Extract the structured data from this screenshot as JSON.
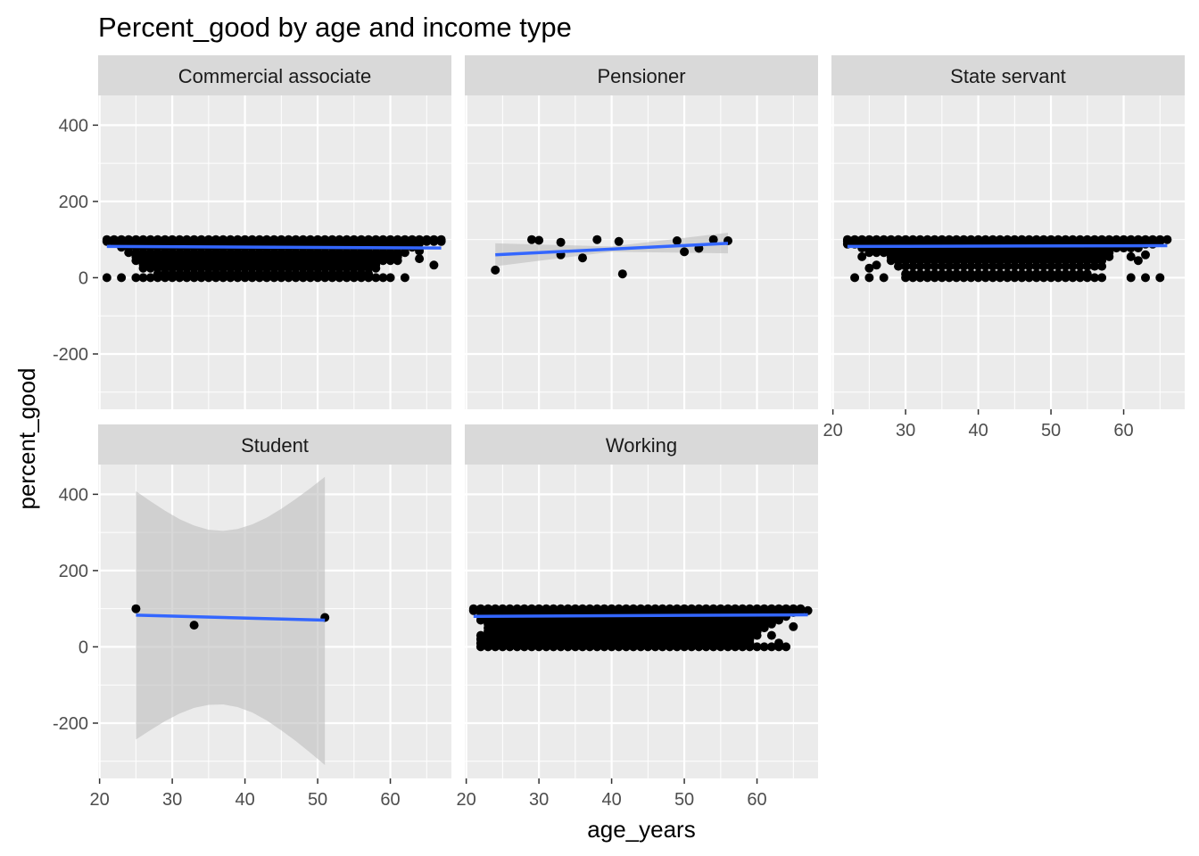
{
  "chart_data": {
    "type": "scatter",
    "title": "Percent_good by age and income type",
    "xlabel": "age_years",
    "ylabel": "percent_good",
    "xlim": [
      19.8,
      68.4
    ],
    "ylim": [
      -345,
      478
    ],
    "x_ticks": [
      20,
      30,
      40,
      50,
      60
    ],
    "y_ticks": [
      -200,
      0,
      200,
      400
    ],
    "facet_layout": {
      "rows": 2,
      "cols": 3
    },
    "colors": {
      "panel_bg": "#ebebeb",
      "strip_bg": "#d9d9d9",
      "grid_major": "#ffffff",
      "point": "#000000",
      "smooth_line": "#3366ff",
      "ribbon": "#bebebe"
    },
    "panels": [
      {
        "label": "Commercial associate",
        "row": 0,
        "col": 0,
        "point_rows": [
          {
            "y": 100,
            "x_from": 21,
            "x_to": 67
          },
          {
            "y": 95,
            "x_from": 21,
            "x_to": 67
          },
          {
            "y": 90,
            "x_from": 22,
            "x_to": 64
          },
          {
            "y": 80,
            "x_from": 23,
            "x_to": 63
          },
          {
            "y": 66,
            "x_from": 24,
            "x_to": 62
          },
          {
            "y": 55,
            "x_from": 25,
            "x_to": 61
          },
          {
            "y": 45,
            "x_from": 25,
            "x_to": 61
          },
          {
            "y": 35,
            "x_from": 26,
            "x_to": 58
          },
          {
            "y": 25,
            "x_from": 26,
            "x_to": 58
          },
          {
            "y": 10,
            "x_from": 28,
            "x_to": 57
          },
          {
            "y": 0,
            "x_from": 25,
            "x_to": 60
          }
        ],
        "points": [
          {
            "x": 21,
            "y": 0
          },
          {
            "x": 23,
            "y": 0
          },
          {
            "x": 62,
            "y": 0
          },
          {
            "x": 64,
            "y": 70
          },
          {
            "x": 66,
            "y": 33
          },
          {
            "x": 64,
            "y": 50
          }
        ],
        "smooth": {
          "x": [
            21,
            67
          ],
          "y": [
            82,
            78
          ]
        }
      },
      {
        "label": "Pensioner",
        "row": 0,
        "col": 1,
        "points": [
          {
            "x": 24,
            "y": 20
          },
          {
            "x": 29,
            "y": 100
          },
          {
            "x": 30,
            "y": 98
          },
          {
            "x": 33,
            "y": 93
          },
          {
            "x": 33,
            "y": 60
          },
          {
            "x": 36,
            "y": 52
          },
          {
            "x": 38,
            "y": 100
          },
          {
            "x": 41,
            "y": 95
          },
          {
            "x": 41.5,
            "y": 10
          },
          {
            "x": 49,
            "y": 97
          },
          {
            "x": 50,
            "y": 68
          },
          {
            "x": 52,
            "y": 77
          },
          {
            "x": 54,
            "y": 100
          },
          {
            "x": 56,
            "y": 97
          }
        ],
        "smooth": {
          "x": [
            24,
            56
          ],
          "y": [
            60,
            90
          ]
        },
        "ribbon": {
          "x": [
            24,
            40,
            56
          ],
          "lower": [
            30,
            68,
            64
          ],
          "upper": [
            90,
            82,
            118
          ]
        }
      },
      {
        "label": "State servant",
        "row": 0,
        "col": 2,
        "point_rows": [
          {
            "y": 100,
            "x_from": 22,
            "x_to": 66
          },
          {
            "y": 95,
            "x_from": 22,
            "x_to": 65
          },
          {
            "y": 88,
            "x_from": 22,
            "x_to": 64
          },
          {
            "y": 78,
            "x_from": 24,
            "x_to": 62
          },
          {
            "y": 66,
            "x_from": 25,
            "x_to": 58
          },
          {
            "y": 55,
            "x_from": 28,
            "x_to": 58
          },
          {
            "y": 45,
            "x_from": 28,
            "x_to": 57
          },
          {
            "y": 30,
            "x_from": 29,
            "x_to": 57
          },
          {
            "y": 10,
            "x_from": 30,
            "x_to": 55
          },
          {
            "y": 0,
            "x_from": 30,
            "x_to": 57
          }
        ],
        "points": [
          {
            "x": 23,
            "y": 0
          },
          {
            "x": 25,
            "y": 0
          },
          {
            "x": 27,
            "y": 0
          },
          {
            "x": 24,
            "y": 55
          },
          {
            "x": 25,
            "y": 25
          },
          {
            "x": 26,
            "y": 33
          },
          {
            "x": 61,
            "y": 0
          },
          {
            "x": 63,
            "y": 0
          },
          {
            "x": 65,
            "y": 0
          },
          {
            "x": 61,
            "y": 55
          },
          {
            "x": 62,
            "y": 45
          },
          {
            "x": 63,
            "y": 60
          }
        ],
        "smooth": {
          "x": [
            22,
            66
          ],
          "y": [
            82,
            84
          ]
        }
      },
      {
        "label": "Student",
        "row": 1,
        "col": 0,
        "points": [
          {
            "x": 25,
            "y": 100
          },
          {
            "x": 33,
            "y": 57
          },
          {
            "x": 51,
            "y": 77
          }
        ],
        "smooth": {
          "x": [
            25,
            51
          ],
          "y": [
            83,
            70
          ]
        },
        "ribbon": {
          "x": [
            25,
            27,
            29,
            31,
            33,
            35,
            37,
            39,
            41,
            43,
            45,
            47,
            49,
            51
          ],
          "lower": [
            -243,
            -218,
            -195,
            -175,
            -160,
            -152,
            -151,
            -158,
            -172,
            -193,
            -219,
            -247,
            -278,
            -310
          ],
          "upper": [
            408,
            382,
            357,
            335,
            318,
            307,
            304,
            309,
            321,
            339,
            362,
            388,
            416,
            446
          ]
        }
      },
      {
        "label": "Working",
        "row": 1,
        "col": 1,
        "point_rows": [
          {
            "y": 100,
            "x_from": 21,
            "x_to": 66
          },
          {
            "y": 95,
            "x_from": 21,
            "x_to": 67
          },
          {
            "y": 90,
            "x_from": 22,
            "x_to": 65
          },
          {
            "y": 80,
            "x_from": 22,
            "x_to": 64
          },
          {
            "y": 70,
            "x_from": 22,
            "x_to": 63
          },
          {
            "y": 60,
            "x_from": 23,
            "x_to": 62
          },
          {
            "y": 50,
            "x_from": 23,
            "x_to": 61
          },
          {
            "y": 40,
            "x_from": 23,
            "x_to": 60
          },
          {
            "y": 30,
            "x_from": 22,
            "x_to": 60
          },
          {
            "y": 20,
            "x_from": 22,
            "x_to": 59
          },
          {
            "y": 10,
            "x_from": 22,
            "x_to": 59
          },
          {
            "y": 0,
            "x_from": 22,
            "x_to": 64
          }
        ],
        "points": [
          {
            "x": 65,
            "y": 53
          },
          {
            "x": 62,
            "y": 30
          },
          {
            "x": 63,
            "y": 10
          }
        ],
        "smooth": {
          "x": [
            21,
            67
          ],
          "y": [
            80,
            84
          ]
        }
      }
    ]
  }
}
